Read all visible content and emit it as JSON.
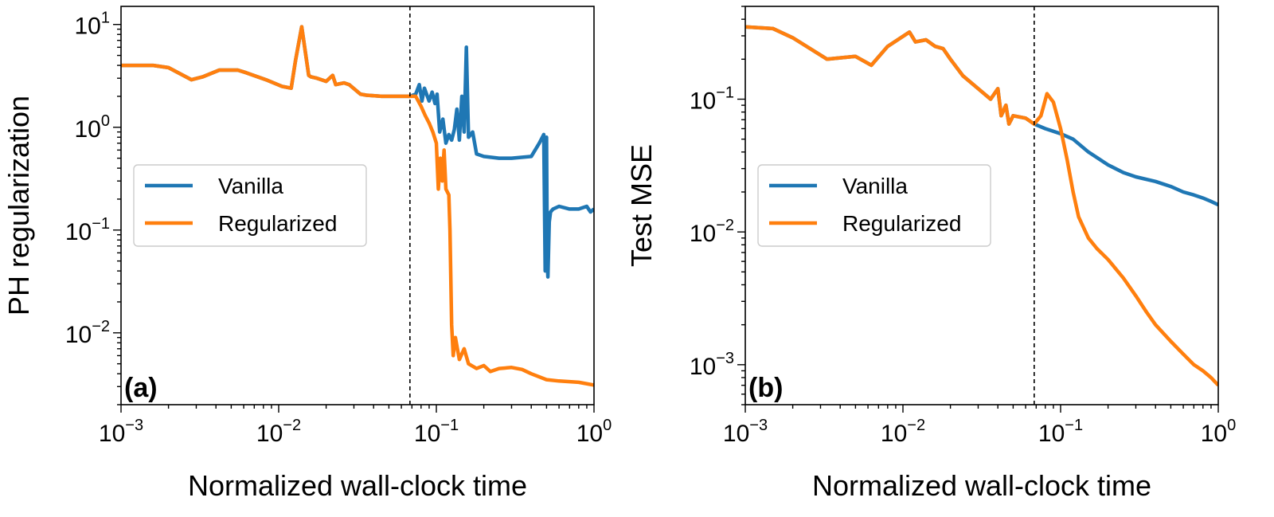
{
  "colors": {
    "vanilla": "#1f77b4",
    "regularized": "#ff7f0e",
    "frame": "#000000"
  },
  "chart_data": [
    {
      "type": "line",
      "panel_label": "(a)",
      "xlabel": "Normalized wall-clock time",
      "ylabel": "PH regularization",
      "xscale": "log",
      "yscale": "log",
      "xlim": [
        0.001,
        1
      ],
      "ylim": [
        0.002,
        15
      ],
      "x_ticks": [
        {
          "base": "10",
          "exp": "−3",
          "value": 0.001
        },
        {
          "base": "10",
          "exp": "−2",
          "value": 0.01
        },
        {
          "base": "10",
          "exp": "−1",
          "value": 0.1
        },
        {
          "base": "10",
          "exp": "0",
          "value": 1
        }
      ],
      "y_ticks": [
        {
          "base": "10",
          "exp": "−2",
          "value": 0.01
        },
        {
          "base": "10",
          "exp": "−1",
          "value": 0.1
        },
        {
          "base": "10",
          "exp": "0",
          "value": 1
        },
        {
          "base": "10",
          "exp": "1",
          "value": 10
        }
      ],
      "vline_x": 0.068,
      "legend": {
        "placement": "center-left",
        "entries": [
          "Vanilla",
          "Regularized"
        ]
      },
      "grid": false,
      "series": [
        {
          "name": "Vanilla",
          "x": [
            0.001,
            0.0016,
            0.002,
            0.0028,
            0.0033,
            0.0042,
            0.0055,
            0.0062,
            0.0083,
            0.0105,
            0.012,
            0.0128,
            0.014,
            0.0155,
            0.016,
            0.0175,
            0.02,
            0.022,
            0.023,
            0.026,
            0.028,
            0.033,
            0.036,
            0.045,
            0.06,
            0.068,
            0.074,
            0.078,
            0.081,
            0.084,
            0.09,
            0.094,
            0.098,
            0.101,
            0.105,
            0.11,
            0.115,
            0.12,
            0.125,
            0.13,
            0.135,
            0.14,
            0.145,
            0.15,
            0.155,
            0.16,
            0.17,
            0.18,
            0.2,
            0.25,
            0.3,
            0.4,
            0.45,
            0.48,
            0.49,
            0.5,
            0.505,
            0.51,
            0.52,
            0.53,
            0.55,
            0.6,
            0.7,
            0.8,
            0.9,
            0.95,
            1.0
          ],
          "y": [
            4,
            4,
            3.8,
            2.9,
            3.1,
            3.6,
            3.6,
            3.4,
            2.9,
            2.5,
            2.4,
            4.5,
            9.5,
            3.2,
            3.1,
            3.0,
            2.8,
            3.2,
            2.6,
            2.7,
            2.6,
            2.1,
            2.05,
            2.0,
            2.0,
            2.0,
            2.1,
            2.6,
            1.8,
            2.4,
            1.8,
            2.2,
            1.7,
            2.1,
            0.9,
            1.2,
            0.7,
            0.85,
            0.75,
            0.95,
            1.5,
            0.75,
            2.0,
            0.9,
            6.0,
            0.8,
            0.9,
            0.55,
            0.52,
            0.5,
            0.5,
            0.52,
            0.7,
            0.85,
            0.04,
            0.8,
            0.05,
            0.035,
            0.12,
            0.15,
            0.16,
            0.17,
            0.16,
            0.16,
            0.17,
            0.15,
            0.16
          ]
        },
        {
          "name": "Regularized",
          "x": [
            0.001,
            0.0016,
            0.002,
            0.0028,
            0.0033,
            0.0042,
            0.0055,
            0.0062,
            0.0083,
            0.0105,
            0.012,
            0.0128,
            0.014,
            0.0155,
            0.016,
            0.0175,
            0.02,
            0.022,
            0.023,
            0.026,
            0.028,
            0.033,
            0.036,
            0.045,
            0.06,
            0.068,
            0.074,
            0.08,
            0.085,
            0.09,
            0.095,
            0.1,
            0.103,
            0.106,
            0.109,
            0.112,
            0.115,
            0.12,
            0.122,
            0.125,
            0.128,
            0.132,
            0.14,
            0.15,
            0.16,
            0.18,
            0.2,
            0.22,
            0.25,
            0.3,
            0.35,
            0.4,
            0.5,
            0.6,
            0.8,
            1.0
          ],
          "y": [
            4,
            4,
            3.8,
            2.9,
            3.1,
            3.6,
            3.6,
            3.4,
            2.9,
            2.5,
            2.4,
            4.5,
            9.5,
            3.2,
            3.1,
            3.0,
            2.8,
            3.2,
            2.6,
            2.7,
            2.6,
            2.1,
            2.05,
            2.0,
            2.0,
            2.0,
            2.0,
            1.6,
            1.3,
            1.1,
            0.9,
            0.7,
            0.25,
            0.5,
            0.3,
            0.6,
            0.25,
            0.22,
            0.1,
            0.012,
            0.006,
            0.009,
            0.0055,
            0.007,
            0.005,
            0.0045,
            0.0048,
            0.0042,
            0.0045,
            0.0046,
            0.0044,
            0.004,
            0.0035,
            0.0034,
            0.0033,
            0.0031
          ]
        }
      ]
    },
    {
      "type": "line",
      "panel_label": "(b)",
      "xlabel": "Normalized wall-clock time",
      "ylabel": "Test MSE",
      "xscale": "log",
      "yscale": "log",
      "xlim": [
        0.001,
        1
      ],
      "ylim": [
        0.0005,
        0.5
      ],
      "x_ticks": [
        {
          "base": "10",
          "exp": "−3",
          "value": 0.001
        },
        {
          "base": "10",
          "exp": "−2",
          "value": 0.01
        },
        {
          "base": "10",
          "exp": "−1",
          "value": 0.1
        },
        {
          "base": "10",
          "exp": "0",
          "value": 1
        }
      ],
      "y_ticks": [
        {
          "base": "10",
          "exp": "−3",
          "value": 0.001
        },
        {
          "base": "10",
          "exp": "−2",
          "value": 0.01
        },
        {
          "base": "10",
          "exp": "−1",
          "value": 0.1
        }
      ],
      "vline_x": 0.068,
      "legend": {
        "placement": "center-left",
        "entries": [
          "Vanilla",
          "Regularized"
        ]
      },
      "grid": false,
      "series": [
        {
          "name": "Vanilla",
          "x": [
            0.001,
            0.0015,
            0.002,
            0.0033,
            0.005,
            0.0063,
            0.008,
            0.011,
            0.012,
            0.014,
            0.016,
            0.018,
            0.02,
            0.024,
            0.03,
            0.036,
            0.04,
            0.042,
            0.045,
            0.047,
            0.05,
            0.06,
            0.068,
            0.08,
            0.1,
            0.12,
            0.15,
            0.2,
            0.25,
            0.3,
            0.4,
            0.5,
            0.6,
            0.7,
            0.8,
            0.9,
            1.0
          ],
          "y": [
            0.35,
            0.34,
            0.29,
            0.2,
            0.21,
            0.18,
            0.25,
            0.32,
            0.27,
            0.28,
            0.25,
            0.24,
            0.2,
            0.15,
            0.12,
            0.1,
            0.12,
            0.075,
            0.09,
            0.065,
            0.075,
            0.072,
            0.065,
            0.06,
            0.055,
            0.05,
            0.04,
            0.032,
            0.028,
            0.026,
            0.024,
            0.022,
            0.02,
            0.019,
            0.018,
            0.017,
            0.016
          ]
        },
        {
          "name": "Regularized",
          "x": [
            0.001,
            0.0015,
            0.002,
            0.0033,
            0.005,
            0.0063,
            0.008,
            0.011,
            0.012,
            0.014,
            0.016,
            0.018,
            0.02,
            0.024,
            0.03,
            0.036,
            0.04,
            0.042,
            0.045,
            0.047,
            0.05,
            0.06,
            0.068,
            0.075,
            0.082,
            0.09,
            0.1,
            0.11,
            0.12,
            0.13,
            0.15,
            0.17,
            0.2,
            0.25,
            0.3,
            0.35,
            0.4,
            0.5,
            0.6,
            0.7,
            0.8,
            0.9,
            1.0
          ],
          "y": [
            0.35,
            0.34,
            0.29,
            0.2,
            0.21,
            0.18,
            0.25,
            0.32,
            0.27,
            0.28,
            0.25,
            0.24,
            0.2,
            0.15,
            0.12,
            0.1,
            0.12,
            0.075,
            0.09,
            0.065,
            0.075,
            0.072,
            0.065,
            0.075,
            0.11,
            0.095,
            0.06,
            0.035,
            0.02,
            0.013,
            0.009,
            0.0075,
            0.0062,
            0.0045,
            0.0033,
            0.0025,
            0.002,
            0.0015,
            0.0012,
            0.001,
            0.0009,
            0.0008,
            0.0007
          ]
        }
      ]
    }
  ]
}
